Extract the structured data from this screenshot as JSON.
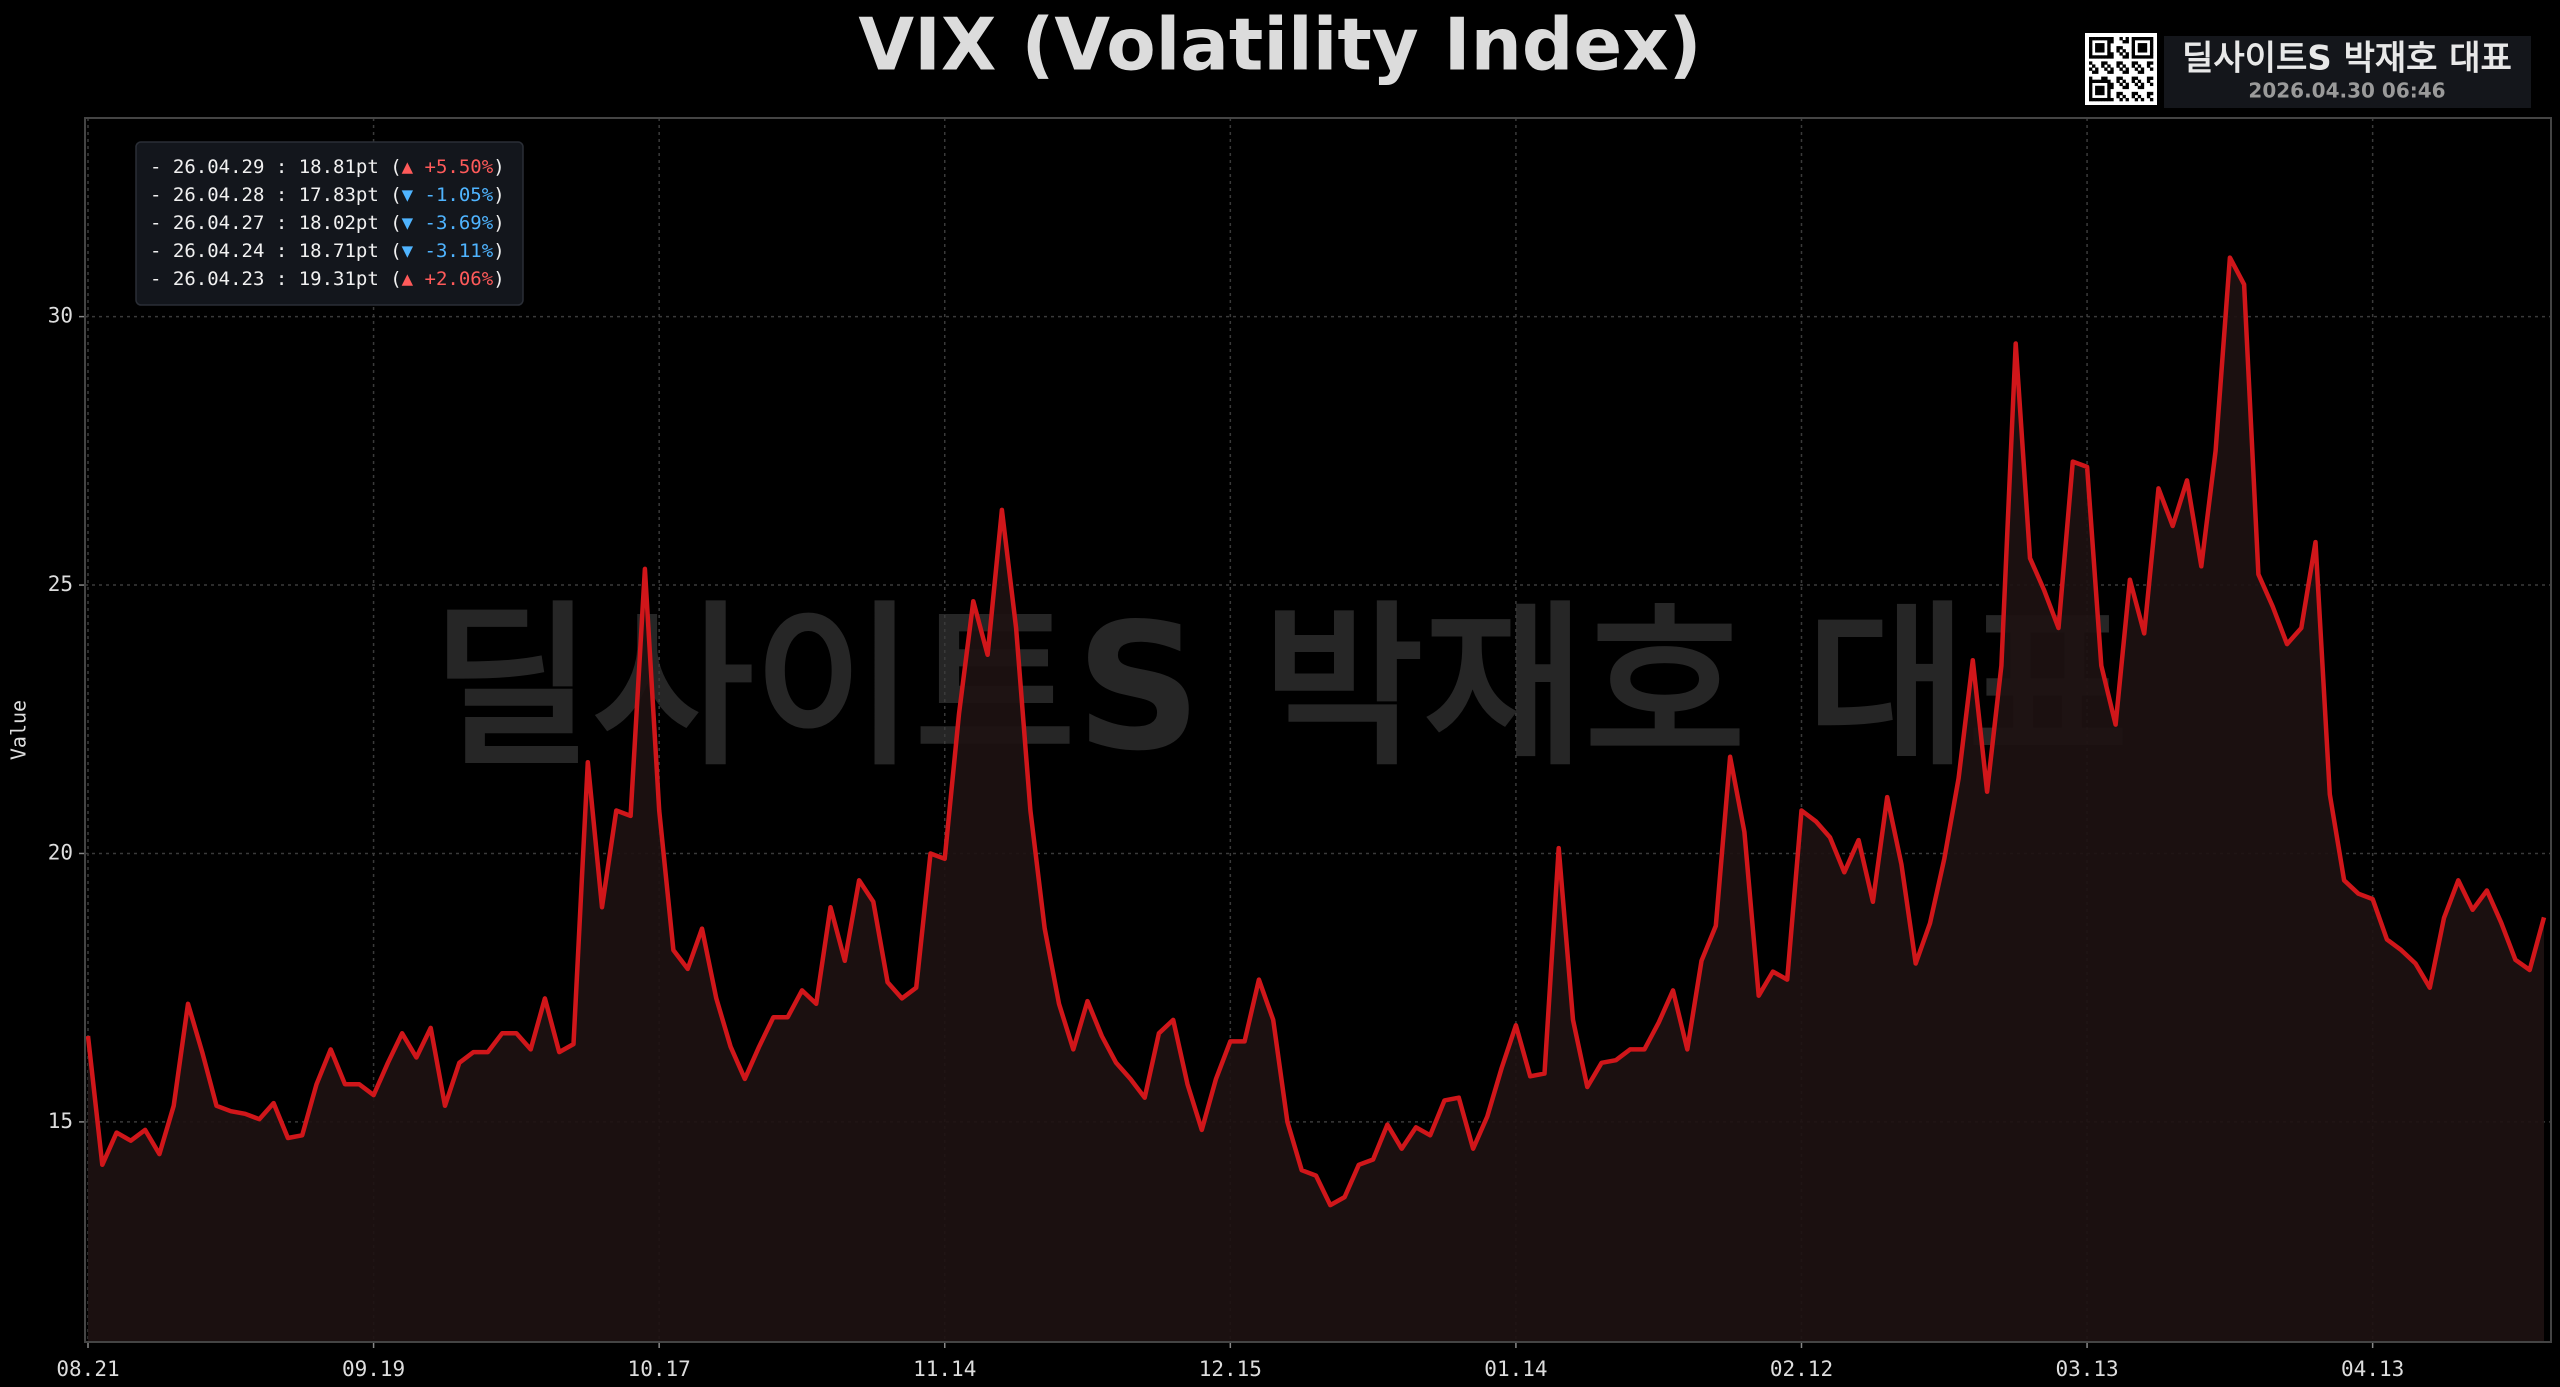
{
  "chart_data": {
    "type": "line",
    "title": "VIX (Volatility Index)",
    "ylabel": "Value",
    "categories": [
      "08.21",
      null,
      null,
      null,
      null,
      null,
      null,
      null,
      null,
      null,
      null,
      null,
      null,
      null,
      null,
      null,
      null,
      null,
      null,
      null,
      "09.19",
      null,
      null,
      null,
      null,
      null,
      null,
      null,
      null,
      null,
      null,
      null,
      null,
      null,
      null,
      null,
      null,
      null,
      null,
      null,
      "10.17",
      null,
      null,
      null,
      null,
      null,
      null,
      null,
      null,
      null,
      null,
      null,
      null,
      null,
      null,
      null,
      null,
      null,
      null,
      null,
      "11.14",
      null,
      null,
      null,
      null,
      null,
      null,
      null,
      null,
      null,
      null,
      null,
      null,
      null,
      null,
      null,
      null,
      null,
      null,
      null,
      "12.15",
      null,
      null,
      null,
      null,
      null,
      null,
      null,
      null,
      null,
      null,
      null,
      null,
      null,
      null,
      null,
      null,
      null,
      null,
      null,
      "01.14",
      null,
      null,
      null,
      null,
      null,
      null,
      null,
      null,
      null,
      null,
      null,
      null,
      null,
      null,
      null,
      null,
      null,
      null,
      null,
      "02.12",
      null,
      null,
      null,
      null,
      null,
      null,
      null,
      null,
      null,
      null,
      null,
      null,
      null,
      null,
      null,
      null,
      null,
      null,
      null,
      "03.13",
      null,
      null,
      null,
      null,
      null,
      null,
      null,
      null,
      null,
      null,
      null,
      null,
      null,
      null,
      null,
      null,
      null,
      null,
      null,
      "04.13",
      null,
      null,
      null,
      null,
      null,
      null,
      null,
      null,
      null,
      null,
      null,
      null
    ],
    "values": [
      16.6,
      14.2,
      14.8,
      14.65,
      14.85,
      14.4,
      15.3,
      17.2,
      16.3,
      15.3,
      15.2,
      15.15,
      15.05,
      15.35,
      14.7,
      14.75,
      15.7,
      16.35,
      15.7,
      15.7,
      15.5,
      16.1,
      16.65,
      16.2,
      16.75,
      15.3,
      16.1,
      16.3,
      16.3,
      16.65,
      16.65,
      16.35,
      17.3,
      16.3,
      16.45,
      21.7,
      19.0,
      20.8,
      20.7,
      25.3,
      20.8,
      18.2,
      17.85,
      18.6,
      17.3,
      16.4,
      15.8,
      16.4,
      16.95,
      16.95,
      17.45,
      17.2,
      19.0,
      18.0,
      19.5,
      19.1,
      17.6,
      17.3,
      17.5,
      20.0,
      19.9,
      22.6,
      24.7,
      23.7,
      26.4,
      24.2,
      20.8,
      18.6,
      17.2,
      16.35,
      17.25,
      16.6,
      16.1,
      15.8,
      15.45,
      16.65,
      16.9,
      15.7,
      14.85,
      15.8,
      16.5,
      16.5,
      17.65,
      16.9,
      15.0,
      14.1,
      14.0,
      13.45,
      13.6,
      14.2,
      14.3,
      14.95,
      14.5,
      14.9,
      14.75,
      15.4,
      15.45,
      14.5,
      15.1,
      16.0,
      16.8,
      15.85,
      15.9,
      20.1,
      16.9,
      15.65,
      16.1,
      16.15,
      16.35,
      16.35,
      16.85,
      17.45,
      16.35,
      18.0,
      18.65,
      21.8,
      20.4,
      17.35,
      17.8,
      17.65,
      20.8,
      20.6,
      20.3,
      19.65,
      20.25,
      19.1,
      21.05,
      19.8,
      17.95,
      18.7,
      19.9,
      21.4,
      23.6,
      21.15,
      23.5,
      29.5,
      25.5,
      24.9,
      24.2,
      27.3,
      27.2,
      23.5,
      22.4,
      25.1,
      24.1,
      26.8,
      26.1,
      26.95,
      25.35,
      27.5,
      31.1,
      30.6,
      25.2,
      24.6,
      23.9,
      24.2,
      25.8,
      21.1,
      19.5,
      19.25,
      19.15,
      18.4,
      18.2,
      17.95,
      17.5,
      18.8,
      19.5,
      18.95,
      19.31,
      18.71,
      18.02,
      17.83,
      18.81
    ],
    "color": "#d0161a",
    "fill": "#1e1212",
    "ylim": [
      10.9,
      33.7
    ],
    "yticks": [
      15,
      20,
      25,
      30
    ],
    "grid": true,
    "legend": [
      {
        "lead": "- 26.04.29 : 18.81pt (",
        "change": "▲ +5.50%",
        "trail": ")",
        "color": "#ff5a5a"
      },
      {
        "lead": "- 26.04.28 : 17.83pt (",
        "change": "▼ -1.05%",
        "trail": ")",
        "color": "#4fb4ff"
      },
      {
        "lead": "- 26.04.27 : 18.02pt (",
        "change": "▼ -3.69%",
        "trail": ")",
        "color": "#4fb4ff"
      },
      {
        "lead": "- 26.04.24 : 18.71pt (",
        "change": "▼ -3.11%",
        "trail": ")",
        "color": "#4fb4ff"
      },
      {
        "lead": "- 26.04.23 : 19.31pt (",
        "change": "▲ +2.06%",
        "trail": ")",
        "color": "#ff5a5a"
      }
    ],
    "watermark": "딜사이트S 박재호 대표",
    "badge": {
      "title": "딜사이트S 박재호 대표",
      "timestamp": "2026.04.30 06:46"
    }
  }
}
